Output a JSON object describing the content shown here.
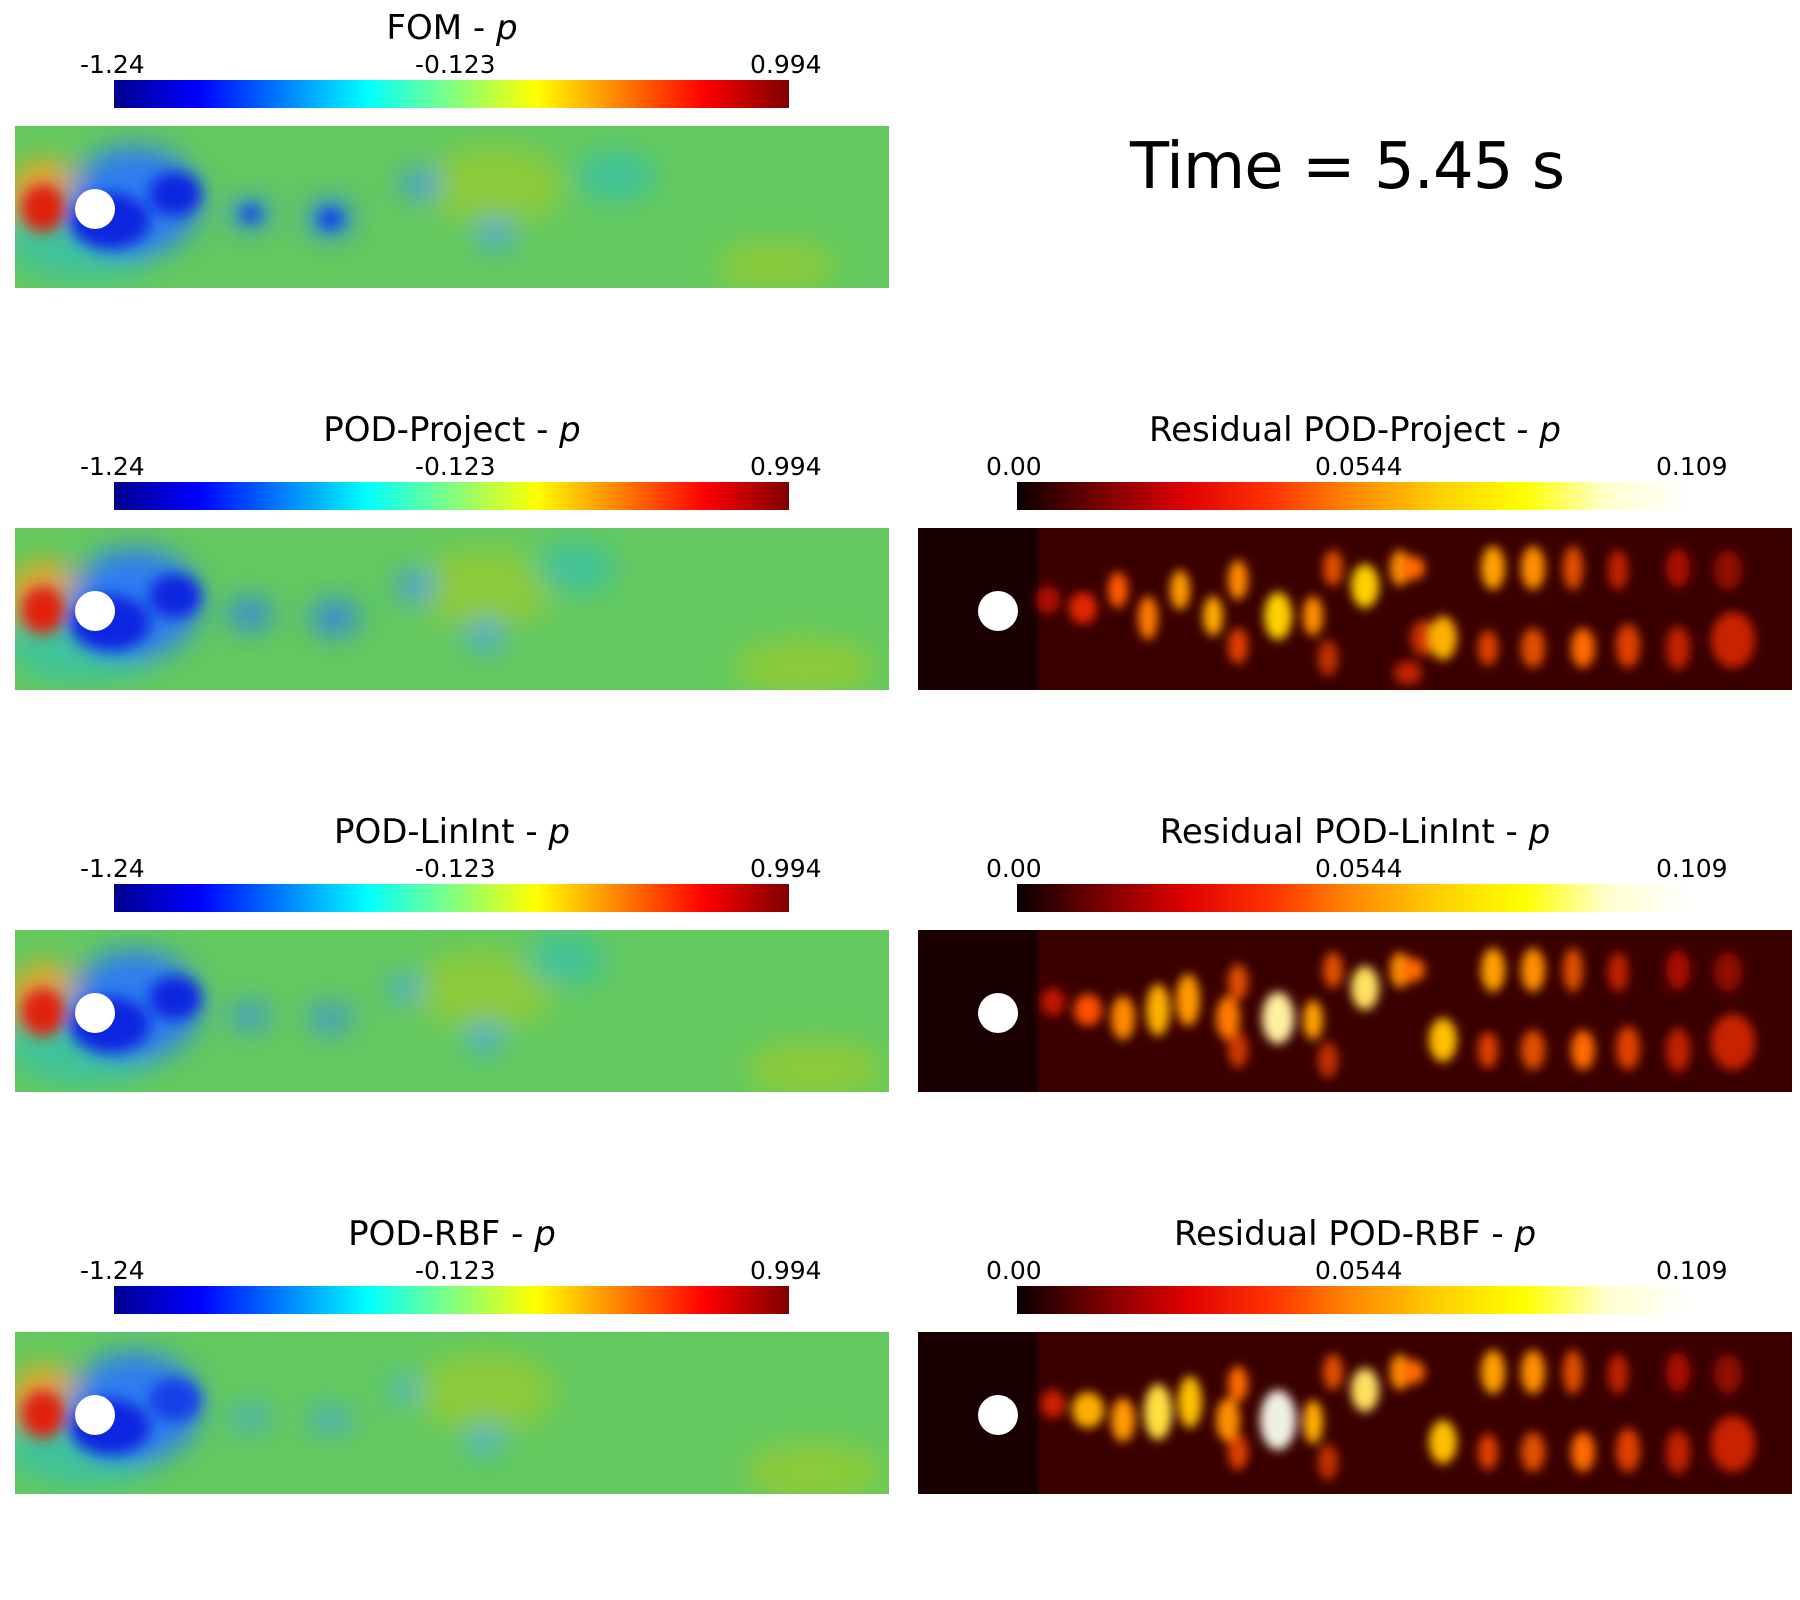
{
  "time_label": "Time = 5.45 s",
  "colormaps": {
    "jet": [
      "#00008f",
      "#0000ff",
      "#0080ff",
      "#00ffff",
      "#80ff80",
      "#ffff00",
      "#ff8000",
      "#ff0000",
      "#800000"
    ],
    "hot": [
      "#0a0000",
      "#7a0000",
      "#e00000",
      "#ff3300",
      "#ff8a00",
      "#ffcf00",
      "#ffff00",
      "#ffffd0",
      "#ffffff"
    ]
  },
  "panels": [
    {
      "title": "FOM - ",
      "var": "p",
      "cmap": "jet",
      "tick_min": "-1.24",
      "tick_mid": "-0.123",
      "tick_max": "0.994"
    },
    {
      "title": "POD-Project - ",
      "var": "p",
      "cmap": "jet",
      "tick_min": "-1.24",
      "tick_mid": "-0.123",
      "tick_max": "0.994"
    },
    {
      "title": "Residual POD-Project - ",
      "var": "p",
      "cmap": "hot",
      "tick_min": "0.00",
      "tick_mid": "0.0544",
      "tick_max": "0.109"
    },
    {
      "title": "POD-LinInt - ",
      "var": "p",
      "cmap": "jet",
      "tick_min": "-1.24",
      "tick_mid": "-0.123",
      "tick_max": "0.994"
    },
    {
      "title": "Residual POD-LinInt - ",
      "var": "p",
      "cmap": "hot",
      "tick_min": "0.00",
      "tick_mid": "0.0544",
      "tick_max": "0.109"
    },
    {
      "title": "POD-RBF - ",
      "var": "p",
      "cmap": "jet",
      "tick_min": "-1.24",
      "tick_mid": "-0.123",
      "tick_max": "0.994"
    },
    {
      "title": "Residual POD-RBF - ",
      "var": "p",
      "cmap": "hot",
      "tick_min": "0.00",
      "tick_mid": "0.0544",
      "tick_max": "0.109"
    }
  ]
}
